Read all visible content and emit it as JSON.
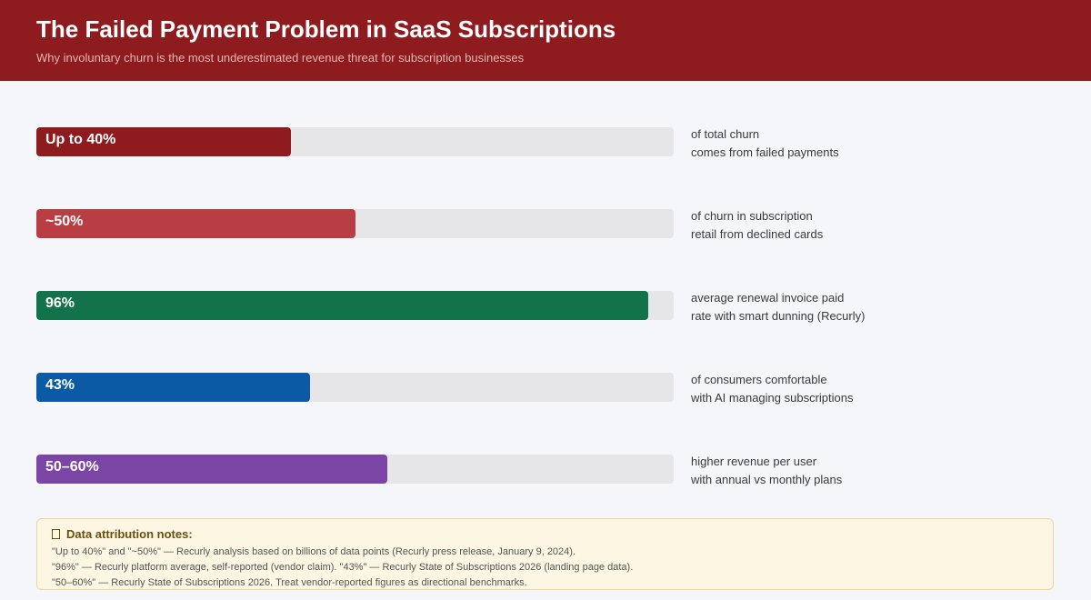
{
  "header": {
    "title": "The Failed Payment Problem in SaaS Subscriptions",
    "subtitle": "Why involuntary churn is the most underestimated revenue threat for subscription businesses"
  },
  "chart_data": {
    "type": "bar",
    "orientation": "horizontal",
    "ylim": [
      0,
      100
    ],
    "categories": [
      "of total churn comes from failed payments",
      "of churn in subscription retail from declined cards",
      "average renewal invoice paid rate with smart dunning (Recurly)",
      "of consumers comfortable with AI managing subscriptions",
      "higher revenue per user with annual vs monthly plans"
    ],
    "values": [
      40,
      50,
      96,
      43,
      55
    ],
    "bars": [
      {
        "label": "Up to 40%",
        "value": 40,
        "color": "#8e1b1e",
        "desc": [
          "of total churn",
          "comes from failed payments"
        ]
      },
      {
        "label": "~50%",
        "value": 50,
        "color": "#b83e43",
        "desc": [
          "of churn in subscription",
          "retail from declined cards"
        ]
      },
      {
        "label": "96%",
        "value": 96,
        "color": "#12734a",
        "desc": [
          "average renewal invoice paid",
          "rate with smart dunning (Recurly)"
        ]
      },
      {
        "label": "43%",
        "value": 43,
        "color": "#0b5aa6",
        "desc": [
          "of consumers comfortable",
          "with AI managing subscriptions"
        ]
      },
      {
        "label": "50–60%",
        "value": 55,
        "color": "#7b45a6",
        "desc": [
          "higher revenue per user",
          "with annual vs monthly plans"
        ]
      }
    ]
  },
  "notes": {
    "title": "Data attribution notes:",
    "icon": "note-icon",
    "lines": [
      "\"Up to 40%\" and \"~50%\" — Recurly analysis based on billions of data points (Recurly press release, January 9, 2024).",
      "\"96%\" — Recurly platform average, self-reported (vendor claim). \"43%\" — Recurly State of Subscriptions 2026 (landing page data).",
      "\"50–60%\" — Recurly State of Subscriptions 2026. Treat vendor-reported figures as directional benchmarks."
    ]
  }
}
